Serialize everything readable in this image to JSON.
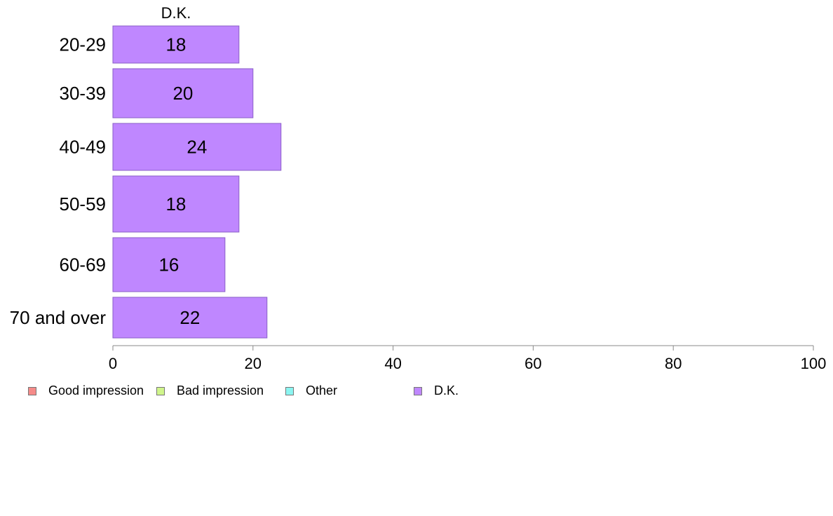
{
  "chart_data": {
    "type": "bar",
    "orientation": "horizontal",
    "series_title": "D.K.",
    "categories": [
      "20-29",
      "30-39",
      "40-49",
      "50-59",
      "60-69",
      "70 and over"
    ],
    "series": [
      {
        "name": "D.K.",
        "values": [
          18,
          20,
          24,
          18,
          16,
          22
        ],
        "color": "#bf87ff"
      }
    ],
    "xlim": [
      0,
      100
    ],
    "xticks": [
      "0",
      "20",
      "40",
      "60",
      "80",
      "100"
    ],
    "grid": false,
    "legend_position": "bottom-left",
    "legend": [
      {
        "label": "Good impression",
        "color": "#f58b89"
      },
      {
        "label": "Bad impression",
        "color": "#d0f58b"
      },
      {
        "label": "Other",
        "color": "#8bf5f1"
      },
      {
        "label": "D.K.",
        "color": "#bf87ff"
      }
    ]
  }
}
